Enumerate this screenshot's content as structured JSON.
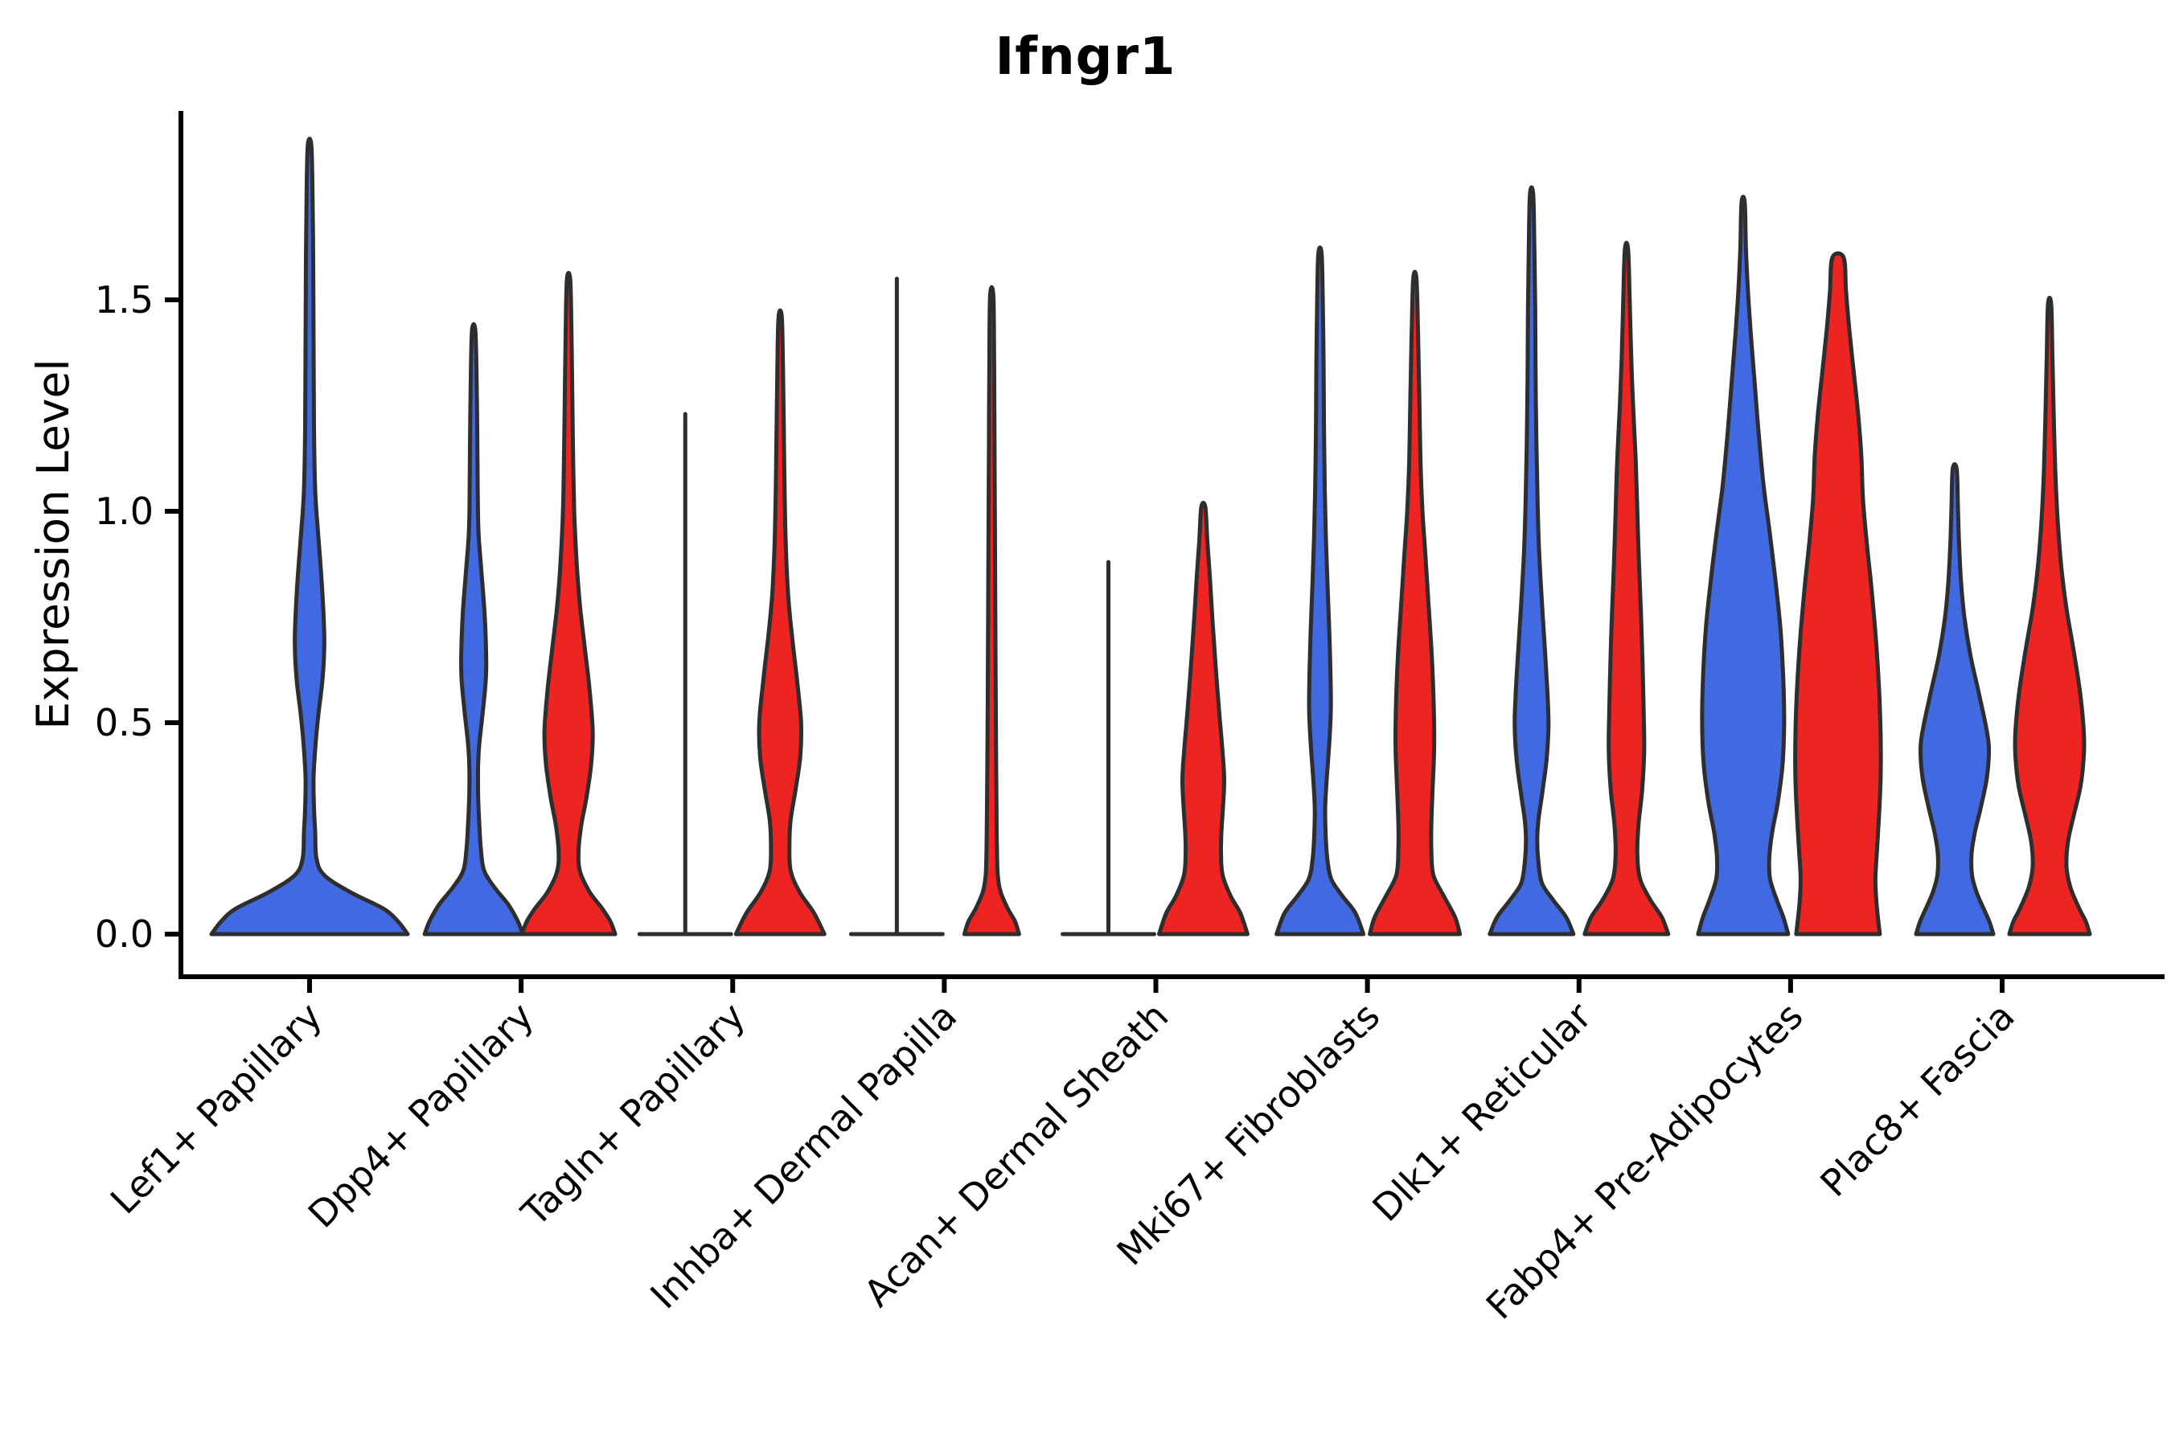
{
  "figure": {
    "title": "Ifngr1",
    "ylabel": "Expression Level"
  },
  "chart_data": {
    "type": "violin",
    "title": "Ifngr1",
    "ylabel": "Expression Level",
    "xlabel": "",
    "ylim": [
      -0.1,
      1.93
    ],
    "ytick_values": [
      0.0,
      0.5,
      1.0,
      1.5
    ],
    "ytick_labels": [
      "0.0",
      "0.5",
      "1.0",
      "1.5"
    ],
    "grid": "off",
    "legend": "none",
    "series_colors": {
      "blue": "#4169E1",
      "red": "#EE2423"
    },
    "edge_color": "#2E2E2E",
    "categories": [
      "Lef1+ Papillary",
      "Dpp4+ Papillary",
      "Tagln+ Papillary",
      "Inhba+ Dermal Papilla",
      "Acan+ Dermal Sheath",
      "Mki67+ Fibroblasts",
      "Dlk1+ Reticular",
      "Fabp4+ Pre-Adipocytes",
      "Plac8+ Fascia"
    ],
    "violins": [
      {
        "category": "Lef1+ Papillary",
        "color": "blue",
        "side": "center",
        "top": 1.87,
        "collapsed": false,
        "profile": [
          [
            1.87,
            2
          ],
          [
            1.78,
            3.5
          ],
          [
            1.6,
            4.5
          ],
          [
            1.4,
            5
          ],
          [
            1.2,
            5.5
          ],
          [
            1.05,
            7
          ],
          [
            0.95,
            10.5
          ],
          [
            0.85,
            14.5
          ],
          [
            0.75,
            17.5
          ],
          [
            0.68,
            18.3
          ],
          [
            0.6,
            16
          ],
          [
            0.52,
            11
          ],
          [
            0.45,
            7.5
          ],
          [
            0.37,
            5
          ],
          [
            0.3,
            5.5
          ],
          [
            0.24,
            7
          ],
          [
            0.18,
            8.5
          ],
          [
            0.14,
            18
          ],
          [
            0.1,
            50
          ],
          [
            0.06,
            92
          ],
          [
            0.03,
            110
          ],
          [
            0,
            122
          ]
        ]
      },
      {
        "category": "Dpp4+ Papillary",
        "color": "blue",
        "side": "left",
        "top": 1.43,
        "collapsed": false,
        "profile": [
          [
            1.43,
            2
          ],
          [
            1.33,
            3.5
          ],
          [
            1.18,
            4.5
          ],
          [
            1.05,
            5
          ],
          [
            0.95,
            6
          ],
          [
            0.86,
            9.5
          ],
          [
            0.76,
            13.5
          ],
          [
            0.66,
            15.5
          ],
          [
            0.6,
            15
          ],
          [
            0.52,
            11
          ],
          [
            0.45,
            7
          ],
          [
            0.4,
            5.5
          ],
          [
            0.33,
            5.5
          ],
          [
            0.26,
            7
          ],
          [
            0.2,
            9
          ],
          [
            0.15,
            13
          ],
          [
            0.11,
            26
          ],
          [
            0.07,
            43
          ],
          [
            0.03,
            55
          ],
          [
            0,
            61
          ]
        ]
      },
      {
        "category": "Dpp4+ Papillary",
        "color": "red",
        "side": "right",
        "top": 1.55,
        "collapsed": false,
        "profile": [
          [
            1.55,
            2
          ],
          [
            1.44,
            3.5
          ],
          [
            1.3,
            4.5
          ],
          [
            1.15,
            5.5
          ],
          [
            1.0,
            7
          ],
          [
            0.88,
            10
          ],
          [
            0.78,
            14
          ],
          [
            0.68,
            20
          ],
          [
            0.58,
            26
          ],
          [
            0.48,
            30
          ],
          [
            0.4,
            28
          ],
          [
            0.32,
            22
          ],
          [
            0.26,
            16
          ],
          [
            0.2,
            12.5
          ],
          [
            0.15,
            14
          ],
          [
            0.1,
            26
          ],
          [
            0.06,
            42
          ],
          [
            0.03,
            52
          ],
          [
            0,
            58
          ]
        ]
      },
      {
        "category": "Tagln+ Papillary",
        "color": "blue",
        "side": "left",
        "top": 1.23,
        "collapsed": true,
        "base_half": 57,
        "profile": null
      },
      {
        "category": "Tagln+ Papillary",
        "color": "red",
        "side": "right",
        "top": 1.46,
        "collapsed": false,
        "profile": [
          [
            1.46,
            2
          ],
          [
            1.34,
            3.5
          ],
          [
            1.2,
            4.5
          ],
          [
            1.05,
            5.5
          ],
          [
            0.92,
            7
          ],
          [
            0.8,
            10
          ],
          [
            0.7,
            15
          ],
          [
            0.6,
            21
          ],
          [
            0.5,
            26
          ],
          [
            0.42,
            25
          ],
          [
            0.34,
            19
          ],
          [
            0.27,
            13
          ],
          [
            0.21,
            11.5
          ],
          [
            0.15,
            13
          ],
          [
            0.1,
            24
          ],
          [
            0.05,
            42
          ],
          [
            0,
            55
          ]
        ]
      },
      {
        "category": "Inhba+ Dermal Papilla",
        "color": "blue",
        "side": "left",
        "top": 1.55,
        "collapsed": true,
        "base_half": 57,
        "profile": null
      },
      {
        "category": "Inhba+ Dermal Papilla",
        "color": "red",
        "side": "right",
        "top": 1.51,
        "collapsed": false,
        "profile": [
          [
            1.51,
            2
          ],
          [
            1.35,
            3
          ],
          [
            1.15,
            3.5
          ],
          [
            0.95,
            4
          ],
          [
            0.75,
            4.5
          ],
          [
            0.55,
            5
          ],
          [
            0.4,
            5.5
          ],
          [
            0.28,
            6
          ],
          [
            0.2,
            6.5
          ],
          [
            0.14,
            7.5
          ],
          [
            0.1,
            11
          ],
          [
            0.06,
            20
          ],
          [
            0.03,
            29
          ],
          [
            0,
            34
          ]
        ]
      },
      {
        "category": "Acan+ Dermal Sheath",
        "color": "blue",
        "side": "left",
        "top": 0.88,
        "collapsed": true,
        "base_half": 57,
        "profile": null
      },
      {
        "category": "Acan+ Dermal Sheath",
        "color": "red",
        "side": "right",
        "top": 1.01,
        "collapsed": false,
        "profile": [
          [
            1.01,
            2.5
          ],
          [
            0.93,
            5
          ],
          [
            0.85,
            8
          ],
          [
            0.74,
            11.5
          ],
          [
            0.63,
            15.5
          ],
          [
            0.52,
            20
          ],
          [
            0.43,
            24
          ],
          [
            0.365,
            26
          ],
          [
            0.3,
            24.5
          ],
          [
            0.24,
            22.5
          ],
          [
            0.19,
            22
          ],
          [
            0.14,
            24
          ],
          [
            0.09,
            34
          ],
          [
            0.05,
            46
          ],
          [
            0,
            55
          ]
        ]
      },
      {
        "category": "Mki67+ Fibroblasts",
        "color": "blue",
        "side": "left",
        "top": 1.61,
        "collapsed": false,
        "profile": [
          [
            1.61,
            2
          ],
          [
            1.5,
            3.5
          ],
          [
            1.35,
            4.5
          ],
          [
            1.2,
            5
          ],
          [
            1.05,
            6
          ],
          [
            0.93,
            7.5
          ],
          [
            0.82,
            9.5
          ],
          [
            0.72,
            11.5
          ],
          [
            0.62,
            13
          ],
          [
            0.53,
            13.5
          ],
          [
            0.45,
            11.5
          ],
          [
            0.37,
            8.5
          ],
          [
            0.3,
            6.5
          ],
          [
            0.24,
            7
          ],
          [
            0.18,
            9
          ],
          [
            0.13,
            14
          ],
          [
            0.09,
            28
          ],
          [
            0.05,
            44
          ],
          [
            0,
            54
          ]
        ]
      },
      {
        "category": "Mki67+ Fibroblasts",
        "color": "red",
        "side": "right",
        "top": 1.55,
        "collapsed": false,
        "profile": [
          [
            1.55,
            2
          ],
          [
            1.42,
            4
          ],
          [
            1.28,
            5.5
          ],
          [
            1.12,
            7
          ],
          [
            1.0,
            9.5
          ],
          [
            0.9,
            13
          ],
          [
            0.78,
            17
          ],
          [
            0.66,
            21
          ],
          [
            0.54,
            23.5
          ],
          [
            0.44,
            24
          ],
          [
            0.34,
            22
          ],
          [
            0.26,
            20.5
          ],
          [
            0.2,
            20.5
          ],
          [
            0.14,
            23
          ],
          [
            0.09,
            36
          ],
          [
            0.04,
            50
          ],
          [
            0,
            56
          ]
        ]
      },
      {
        "category": "Dlk1+ Reticular",
        "color": "blue",
        "side": "left",
        "top": 1.75,
        "collapsed": false,
        "profile": [
          [
            1.75,
            2
          ],
          [
            1.62,
            3.5
          ],
          [
            1.48,
            4.5
          ],
          [
            1.32,
            5
          ],
          [
            1.16,
            6
          ],
          [
            1.02,
            7.5
          ],
          [
            0.9,
            9.5
          ],
          [
            0.78,
            13
          ],
          [
            0.66,
            17
          ],
          [
            0.56,
            20
          ],
          [
            0.49,
            21
          ],
          [
            0.41,
            18.5
          ],
          [
            0.33,
            13
          ],
          [
            0.27,
            8.5
          ],
          [
            0.22,
            7
          ],
          [
            0.17,
            8.5
          ],
          [
            0.12,
            13
          ],
          [
            0.08,
            27
          ],
          [
            0.04,
            43
          ],
          [
            0,
            52
          ]
        ]
      },
      {
        "category": "Dlk1+ Reticular",
        "color": "red",
        "side": "right",
        "top": 1.62,
        "collapsed": false,
        "profile": [
          [
            1.62,
            2
          ],
          [
            1.5,
            4
          ],
          [
            1.36,
            6
          ],
          [
            1.24,
            8.5
          ],
          [
            1.12,
            11.5
          ],
          [
            1.0,
            13.5
          ],
          [
            0.88,
            15.5
          ],
          [
            0.76,
            18
          ],
          [
            0.64,
            20
          ],
          [
            0.52,
            21.5
          ],
          [
            0.43,
            22
          ],
          [
            0.34,
            19.5
          ],
          [
            0.26,
            15
          ],
          [
            0.19,
            13.5
          ],
          [
            0.13,
            17
          ],
          [
            0.08,
            30
          ],
          [
            0.04,
            44
          ],
          [
            0,
            52
          ]
        ]
      },
      {
        "category": "Fabp4+ Pre-Adipocytes",
        "color": "blue",
        "side": "left",
        "top": 1.73,
        "collapsed": false,
        "profile": [
          [
            1.73,
            2
          ],
          [
            1.62,
            3.5
          ],
          [
            1.52,
            6
          ],
          [
            1.42,
            9.5
          ],
          [
            1.3,
            14.5
          ],
          [
            1.18,
            19.5
          ],
          [
            1.06,
            25.5
          ],
          [
            0.95,
            33
          ],
          [
            0.84,
            40
          ],
          [
            0.72,
            46.5
          ],
          [
            0.6,
            50
          ],
          [
            0.5,
            51
          ],
          [
            0.4,
            49
          ],
          [
            0.31,
            43
          ],
          [
            0.24,
            36
          ],
          [
            0.18,
            32.5
          ],
          [
            0.13,
            33.5
          ],
          [
            0.08,
            42
          ],
          [
            0.04,
            50
          ],
          [
            0,
            56
          ]
        ]
      },
      {
        "category": "Fabp4+ Pre-Adipocytes",
        "color": "red",
        "side": "right",
        "top": 1.6,
        "collapsed": false,
        "profile": [
          [
            1.6,
            7
          ],
          [
            1.52,
            10
          ],
          [
            1.43,
            14
          ],
          [
            1.33,
            19.5
          ],
          [
            1.23,
            25
          ],
          [
            1.13,
            29
          ],
          [
            1.03,
            31
          ],
          [
            0.93,
            35.5
          ],
          [
            0.82,
            41.5
          ],
          [
            0.7,
            47
          ],
          [
            0.58,
            51
          ],
          [
            0.47,
            53
          ],
          [
            0.37,
            53
          ],
          [
            0.28,
            51
          ],
          [
            0.2,
            48.5
          ],
          [
            0.13,
            46.5
          ],
          [
            0.07,
            48
          ],
          [
            0,
            52
          ]
        ]
      },
      {
        "category": "Plac8+ Fascia",
        "color": "blue",
        "side": "left",
        "top": 1.1,
        "collapsed": false,
        "profile": [
          [
            1.1,
            2.5
          ],
          [
            1.01,
            4
          ],
          [
            0.92,
            5.5
          ],
          [
            0.83,
            8
          ],
          [
            0.75,
            12
          ],
          [
            0.66,
            19.5
          ],
          [
            0.57,
            30
          ],
          [
            0.49,
            39
          ],
          [
            0.44,
            42.5
          ],
          [
            0.37,
            40
          ],
          [
            0.3,
            32.5
          ],
          [
            0.24,
            25
          ],
          [
            0.19,
            21
          ],
          [
            0.14,
            21.5
          ],
          [
            0.1,
            27
          ],
          [
            0.06,
            36
          ],
          [
            0.03,
            43
          ],
          [
            0,
            48
          ]
        ]
      },
      {
        "category": "Plac8+ Fascia",
        "color": "red",
        "side": "right",
        "top": 1.49,
        "collapsed": false,
        "profile": [
          [
            1.49,
            2
          ],
          [
            1.37,
            3.5
          ],
          [
            1.24,
            5
          ],
          [
            1.1,
            7
          ],
          [
            0.98,
            10
          ],
          [
            0.87,
            14.5
          ],
          [
            0.77,
            21
          ],
          [
            0.67,
            30
          ],
          [
            0.57,
            38
          ],
          [
            0.48,
            42.5
          ],
          [
            0.42,
            42.5
          ],
          [
            0.35,
            38.5
          ],
          [
            0.28,
            30
          ],
          [
            0.22,
            23
          ],
          [
            0.16,
            21
          ],
          [
            0.11,
            26
          ],
          [
            0.06,
            37
          ],
          [
            0.03,
            45
          ],
          [
            0,
            50
          ]
        ]
      }
    ]
  }
}
